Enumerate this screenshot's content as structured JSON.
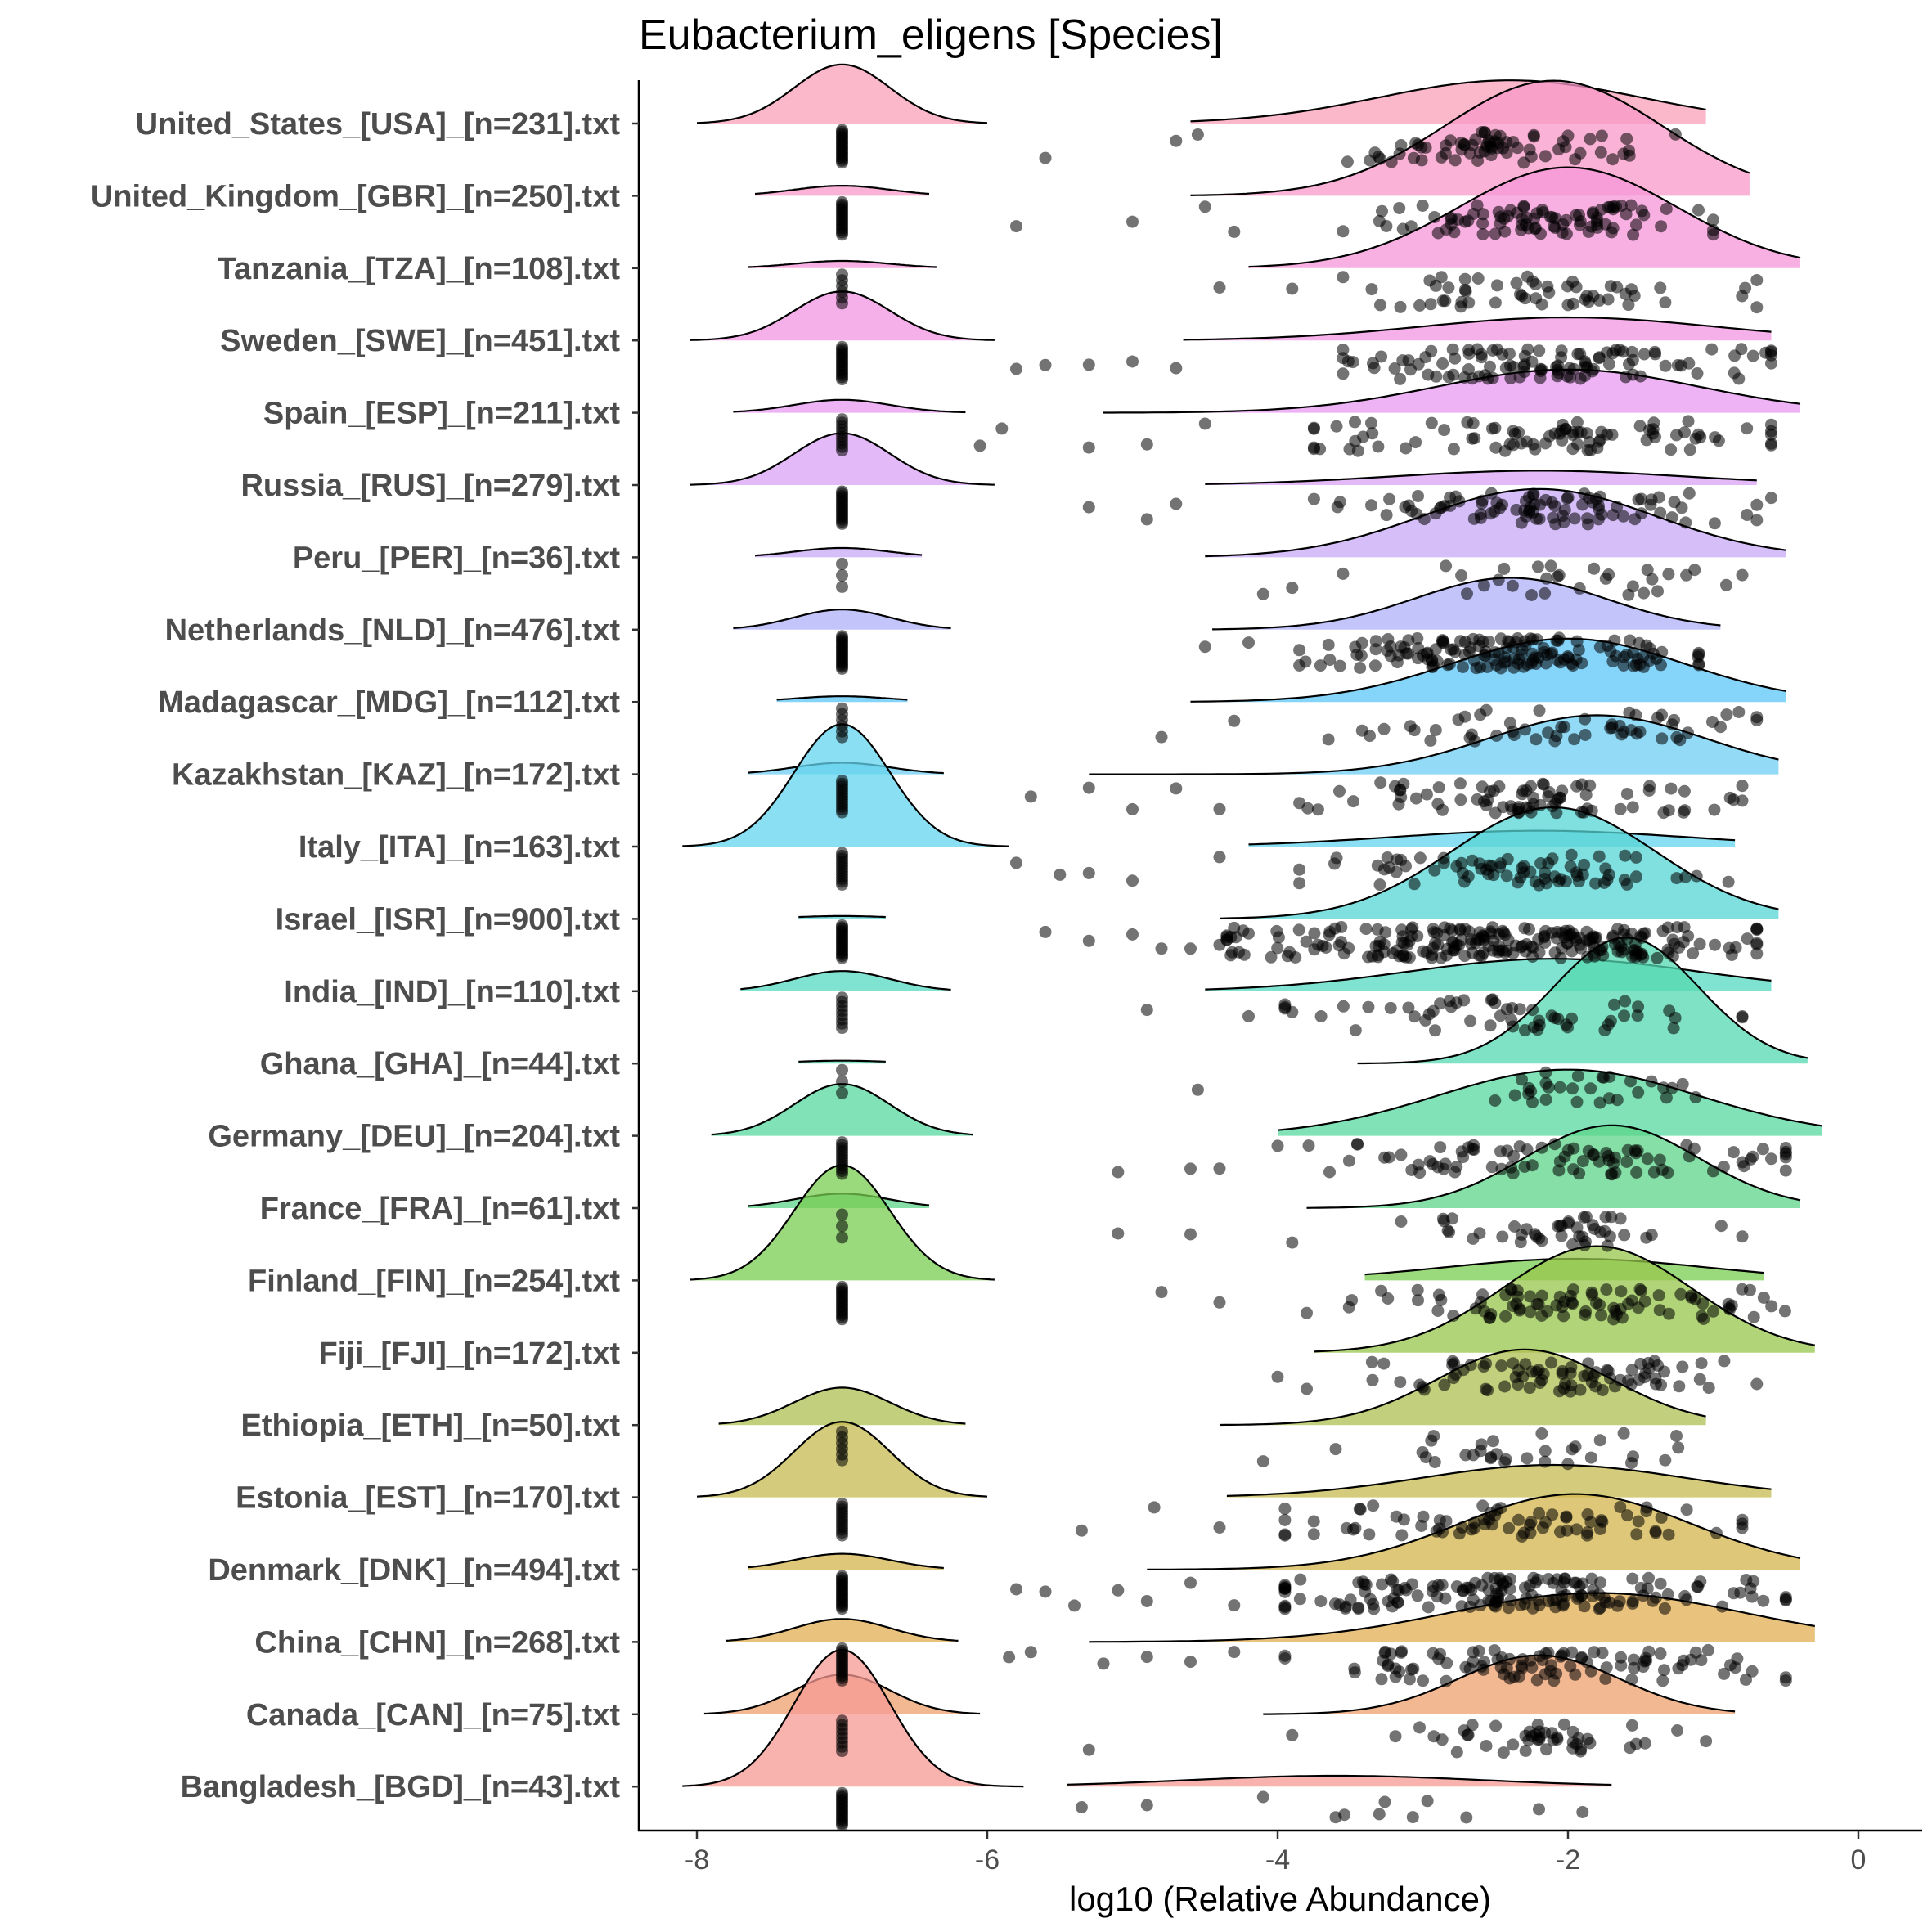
{
  "chart_data": {
    "type": "raincloud",
    "title": "Eubacterium_eligens [Species]",
    "xlabel": "log10 (Relative Abundance)",
    "xlim": [
      -8.4,
      0.4
    ],
    "xticks": [
      -8,
      -6,
      -4,
      -2,
      0
    ],
    "xtick_labels": [
      "-8",
      "-6",
      "-4",
      "-2",
      "0"
    ],
    "groups": [
      {
        "label": "United_States_[USA]_[n=231].txt",
        "color": "#F8A0B8",
        "zero": {
          "amp": 0.82,
          "sd": 0.33,
          "lo": -8.0,
          "hi": -6.0
        },
        "main": {
          "mean": -2.4,
          "sd": 0.9,
          "amp": 0.6,
          "lo": -4.6,
          "hi": -1.05
        },
        "spread": [
          -3.3,
          -1.5
        ],
        "outliers": [
          -5.6,
          -4.7,
          -4.55
        ],
        "npts": 70,
        "zero_pts": 18
      },
      {
        "label": "United_Kingdom_[GBR]_[n=250].txt",
        "color": "#F898C8",
        "zero": {
          "amp": 0.14,
          "sd": 0.33,
          "lo": -7.6,
          "hi": -6.4
        },
        "main": {
          "mean": -2.1,
          "sd": 0.75,
          "amp": 1.6,
          "lo": -4.6,
          "hi": -0.75
        },
        "spread": [
          -3.2,
          -1.3
        ],
        "outliers": [
          -5.8,
          -5.0,
          -4.5,
          -4.3
        ],
        "npts": 90,
        "zero_pts": 16
      },
      {
        "label": "Tanzania_[TZA]_[n=108].txt",
        "color": "#F596D8",
        "zero": {
          "amp": 0.1,
          "sd": 0.33,
          "lo": -7.65,
          "hi": -6.35
        },
        "main": {
          "mean": -2.0,
          "sd": 0.75,
          "amp": 1.4,
          "lo": -4.2,
          "hi": -0.4
        },
        "spread": [
          -3.2,
          -1.0
        ],
        "outliers": [
          -4.4,
          -3.9
        ],
        "npts": 55,
        "zero_pts": 6
      },
      {
        "label": "Sweden_[SWE]_[n=451].txt",
        "color": "#F295E3",
        "zero": {
          "amp": 0.68,
          "sd": 0.33,
          "lo": -8.05,
          "hi": -5.95
        },
        "main": {
          "mean": -2.0,
          "sd": 1.0,
          "amp": 0.32,
          "lo": -4.65,
          "hi": -0.6
        },
        "spread": [
          -3.2,
          -0.9
        ],
        "outliers": [
          -5.8,
          -5.6,
          -5.3,
          -5.0,
          -4.7
        ],
        "npts": 110,
        "zero_pts": 16
      },
      {
        "label": "Spain_[ESP]_[n=211].txt",
        "color": "#E79AF0",
        "zero": {
          "amp": 0.18,
          "sd": 0.33,
          "lo": -7.75,
          "hi": -6.15
        },
        "main": {
          "mean": -2.0,
          "sd": 0.9,
          "amp": 0.6,
          "lo": -5.2,
          "hi": -0.4
        },
        "spread": [
          -3.4,
          -0.9
        ],
        "outliers": [
          -6.05,
          -5.9,
          -5.3,
          -4.9,
          -4.5
        ],
        "npts": 85,
        "zero_pts": 10
      },
      {
        "label": "Russia_[RUS]_[n=279].txt",
        "color": "#D9A2F5",
        "zero": {
          "amp": 0.72,
          "sd": 0.33,
          "lo": -8.05,
          "hi": -5.95
        },
        "main": {
          "mean": -2.2,
          "sd": 1.0,
          "amp": 0.2,
          "lo": -4.5,
          "hi": -0.7
        },
        "spread": [
          -3.4,
          -1.0
        ],
        "outliers": [
          -5.3,
          -4.9,
          -4.7,
          -0.6
        ],
        "npts": 90,
        "zero_pts": 16
      },
      {
        "label": "Peru_[PER]_[n=36].txt",
        "color": "#C8A9F7",
        "zero": {
          "amp": 0.13,
          "sd": 0.33,
          "lo": -7.6,
          "hi": -6.45
        },
        "main": {
          "mean": -2.2,
          "sd": 0.8,
          "amp": 0.95,
          "lo": -4.5,
          "hi": -0.5
        },
        "spread": [
          -3.2,
          -1.1
        ],
        "outliers": [
          -4.1,
          -3.9
        ],
        "npts": 30,
        "zero_pts": 3
      },
      {
        "label": "Netherlands_[NLD]_[n=476].txt",
        "color": "#AFB2F8",
        "zero": {
          "amp": 0.28,
          "sd": 0.33,
          "lo": -7.75,
          "hi": -6.25
        },
        "main": {
          "mean": -2.4,
          "sd": 0.65,
          "amp": 0.72,
          "lo": -4.45,
          "hi": -0.95
        },
        "spread": [
          -3.5,
          -1.4
        ],
        "outliers": [
          -4.5,
          -4.2
        ],
        "npts": 150,
        "zero_pts": 18
      },
      {
        "label": "Madagascar_[MDG]_[n=112].txt",
        "color": "#5CC6F8",
        "zero": {
          "amp": 0.08,
          "sd": 0.33,
          "lo": -7.45,
          "hi": -6.55
        },
        "main": {
          "mean": -2.0,
          "sd": 0.8,
          "amp": 0.88,
          "lo": -4.6,
          "hi": -0.5
        },
        "spread": [
          -3.3,
          -1.0
        ],
        "outliers": [
          -4.8,
          -4.3
        ],
        "npts": 55,
        "zero_pts": 6
      },
      {
        "label": "Kazakhstan_[KAZ]_[n=172].txt",
        "color": "#6ECDF3",
        "zero": {
          "amp": 0.16,
          "sd": 0.33,
          "lo": -7.65,
          "hi": -6.3
        },
        "main": {
          "mean": -1.8,
          "sd": 0.75,
          "amp": 0.82,
          "lo": -5.3,
          "hi": -0.55
        },
        "spread": [
          -3.5,
          -1.1
        ],
        "outliers": [
          -5.7,
          -5.3,
          -5.0,
          -4.7,
          -4.4
        ],
        "npts": 80,
        "zero_pts": 12
      },
      {
        "label": "Italy_[ITA]_[n=163].txt",
        "color": "#64D4EE",
        "zero": {
          "amp": 1.7,
          "sd": 0.33,
          "lo": -8.1,
          "hi": -5.85
        },
        "main": {
          "mean": -2.2,
          "sd": 1.0,
          "amp": 0.22,
          "lo": -4.2,
          "hi": -0.85
        },
        "spread": [
          -3.5,
          -1.1
        ],
        "outliers": [
          -5.8,
          -5.5,
          -5.3,
          -5.0,
          -4.4
        ],
        "npts": 75,
        "zero_pts": 12
      },
      {
        "label": "Israel_[ISR]_[n=900].txt",
        "color": "#55D4D4",
        "zero": {
          "amp": 0.04,
          "sd": 0.33,
          "lo": -7.3,
          "hi": -6.7
        },
        "main": {
          "mean": -2.1,
          "sd": 0.7,
          "amp": 1.55,
          "lo": -4.4,
          "hi": -0.55
        },
        "spread": [
          -4.0,
          -1.0
        ],
        "outliers": [
          -5.6,
          -5.3,
          -5.0,
          -4.8,
          -4.6,
          -4.4,
          -4.2,
          -0.7
        ],
        "npts": 230,
        "zero_pts": 18
      },
      {
        "label": "India_[IND]_[n=110].txt",
        "color": "#55D8C0",
        "zero": {
          "amp": 0.28,
          "sd": 0.33,
          "lo": -7.7,
          "hi": -6.25
        },
        "main": {
          "mean": -2.1,
          "sd": 1.0,
          "amp": 0.45,
          "lo": -4.5,
          "hi": -0.6
        },
        "spread": [
          -3.6,
          -1.1
        ],
        "outliers": [
          -4.9,
          -4.2,
          -3.9
        ],
        "npts": 55,
        "zero_pts": 8
      },
      {
        "label": "Ghana_[GHA]_[n=44].txt",
        "color": "#55D8B0",
        "zero": {
          "amp": 0.04,
          "sd": 0.33,
          "lo": -7.3,
          "hi": -6.7
        },
        "main": {
          "mean": -1.6,
          "sd": 0.5,
          "amp": 1.75,
          "lo": -3.45,
          "hi": -0.35
        },
        "spread": [
          -2.6,
          -1.1
        ],
        "outliers": [
          -4.55
        ],
        "npts": 30,
        "zero_pts": 3
      },
      {
        "label": "Germany_[DEU]_[n=204].txt",
        "color": "#55D89E",
        "zero": {
          "amp": 0.72,
          "sd": 0.33,
          "lo": -7.9,
          "hi": -6.1
        },
        "main": {
          "mean": -2.0,
          "sd": 0.9,
          "amp": 0.92,
          "lo": -4.0,
          "hi": -0.25
        },
        "spread": [
          -3.5,
          -0.8
        ],
        "outliers": [
          -5.1,
          -4.6,
          -4.4,
          -4.0,
          -0.6
        ],
        "npts": 85,
        "zero_pts": 12
      },
      {
        "label": "France_[FRA]_[n=61].txt",
        "color": "#5CD48A",
        "zero": {
          "amp": 0.2,
          "sd": 0.33,
          "lo": -7.65,
          "hi": -6.4
        },
        "main": {
          "mean": -1.7,
          "sd": 0.6,
          "amp": 1.15,
          "lo": -3.8,
          "hi": -0.4
        },
        "spread": [
          -2.8,
          -1.1
        ],
        "outliers": [
          -5.1,
          -4.6,
          -3.9
        ],
        "npts": 45,
        "zero_pts": 3
      },
      {
        "label": "Finland_[FIN]_[n=254].txt",
        "color": "#78CC50",
        "zero": {
          "amp": 1.6,
          "sd": 0.33,
          "lo": -8.05,
          "hi": -5.95
        },
        "main": {
          "mean": -1.95,
          "sd": 0.9,
          "amp": 0.3,
          "lo": -3.4,
          "hi": -0.65
        },
        "spread": [
          -3.2,
          -0.8
        ],
        "outliers": [
          -4.8,
          -4.4,
          -3.8
        ],
        "npts": 85,
        "zero_pts": 16
      },
      {
        "label": "Fiji_[FJI]_[n=172].txt",
        "color": "#98C64C",
        "zero": {
          "amp": 0.0,
          "sd": 0.33,
          "lo": -7.0,
          "hi": -7.0
        },
        "main": {
          "mean": -1.8,
          "sd": 0.65,
          "amp": 1.48,
          "lo": -3.75,
          "hi": -0.3
        },
        "spread": [
          -3.0,
          -1.0
        ],
        "outliers": [
          -4.0,
          -3.8
        ],
        "npts": 80,
        "zero_pts": 0
      },
      {
        "label": "Ethiopia_[ETH]_[n=50].txt",
        "color": "#AEBF52",
        "zero": {
          "amp": 0.52,
          "sd": 0.33,
          "lo": -7.85,
          "hi": -6.15
        },
        "main": {
          "mean": -2.3,
          "sd": 0.6,
          "amp": 1.05,
          "lo": -4.4,
          "hi": -1.05
        },
        "spread": [
          -3.2,
          -1.4
        ],
        "outliers": [
          -4.1,
          -3.6
        ],
        "npts": 30,
        "zero_pts": 6
      },
      {
        "label": "Estonia_[EST]_[n=170].txt",
        "color": "#C6BB50",
        "zero": {
          "amp": 1.05,
          "sd": 0.33,
          "lo": -8.0,
          "hi": -6.0
        },
        "main": {
          "mean": -2.1,
          "sd": 0.9,
          "amp": 0.45,
          "lo": -4.35,
          "hi": -0.6
        },
        "spread": [
          -3.6,
          -1.1
        ],
        "outliers": [
          -5.35,
          -4.85,
          -4.4
        ],
        "npts": 75,
        "zero_pts": 12
      },
      {
        "label": "Denmark_[DNK]_[n=494].txt",
        "color": "#D4B44C",
        "zero": {
          "amp": 0.22,
          "sd": 0.33,
          "lo": -7.65,
          "hi": -6.3
        },
        "main": {
          "mean": -1.95,
          "sd": 0.8,
          "amp": 1.05,
          "lo": -4.9,
          "hi": -0.4
        },
        "spread": [
          -3.6,
          -0.8
        ],
        "outliers": [
          -5.8,
          -5.6,
          -5.4,
          -5.1,
          -4.9,
          -4.6,
          -4.3
        ],
        "npts": 160,
        "zero_pts": 18
      },
      {
        "label": "China_[CHN]_[n=268].txt",
        "color": "#E1AE52",
        "zero": {
          "amp": 0.32,
          "sd": 0.33,
          "lo": -7.8,
          "hi": -6.2
        },
        "main": {
          "mean": -1.8,
          "sd": 1.0,
          "amp": 0.68,
          "lo": -5.3,
          "hi": -0.3
        },
        "spread": [
          -3.6,
          -0.8
        ],
        "outliers": [
          -5.85,
          -5.7,
          -5.2,
          -4.9,
          -4.6,
          -4.3
        ],
        "npts": 100,
        "zero_pts": 14
      },
      {
        "label": "Canada_[CAN]_[n=75].txt",
        "color": "#EEA06E",
        "zero": {
          "amp": 0.55,
          "sd": 0.33,
          "lo": -7.95,
          "hi": -6.05
        },
        "main": {
          "mean": -2.2,
          "sd": 0.55,
          "amp": 0.82,
          "lo": -4.1,
          "hi": -0.85
        },
        "spread": [
          -3.1,
          -1.5
        ],
        "outliers": [
          -5.3,
          -3.9,
          -1.05
        ],
        "npts": 45,
        "zero_pts": 8
      },
      {
        "label": "Bangladesh_[BGD]_[n=43].txt",
        "color": "#F59A94",
        "zero": {
          "amp": 1.9,
          "sd": 0.33,
          "lo": -8.1,
          "hi": -5.75
        },
        "main": {
          "mean": -3.6,
          "sd": 1.0,
          "amp": 0.15,
          "lo": -5.45,
          "hi": -1.7
        },
        "spread": [
          -4.0,
          -2.2
        ],
        "outliers": [
          -5.35,
          -4.9,
          -4.1,
          -3.6,
          -3.3,
          -2.7,
          -2.2,
          -1.9
        ],
        "npts": 4,
        "zero_pts": 16
      }
    ]
  }
}
